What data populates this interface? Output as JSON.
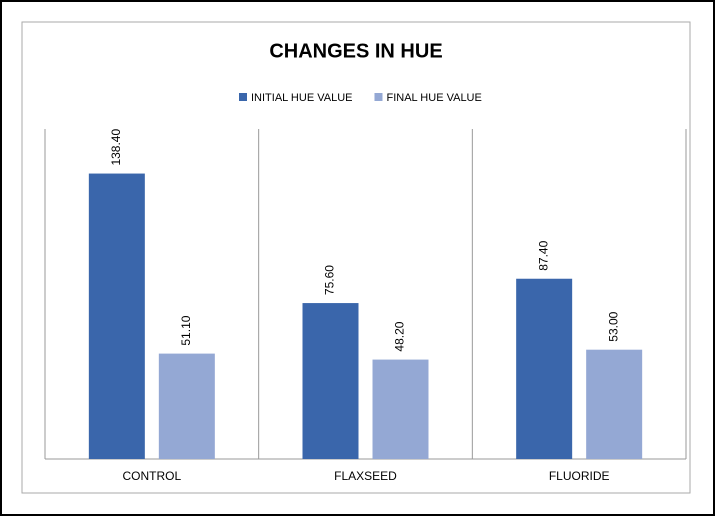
{
  "chart_data": {
    "type": "bar",
    "title": "CHANGES IN HUE",
    "categories": [
      "CONTROL",
      "FLAXSEED",
      "FLUORIDE"
    ],
    "series": [
      {
        "name": "INITIAL HUE VALUE",
        "color": "#3a66ab",
        "values": [
          138.4,
          75.6,
          87.4
        ],
        "value_labels": [
          "138.40",
          "75.60",
          "87.40"
        ]
      },
      {
        "name": "FINAL HUE VALUE",
        "color": "#94a8d4",
        "values": [
          51.1,
          48.2,
          53
        ],
        "value_labels": [
          "51.10",
          "48.20",
          "53.00"
        ]
      }
    ],
    "ylim": [
      0,
      160
    ],
    "legend": "top"
  }
}
